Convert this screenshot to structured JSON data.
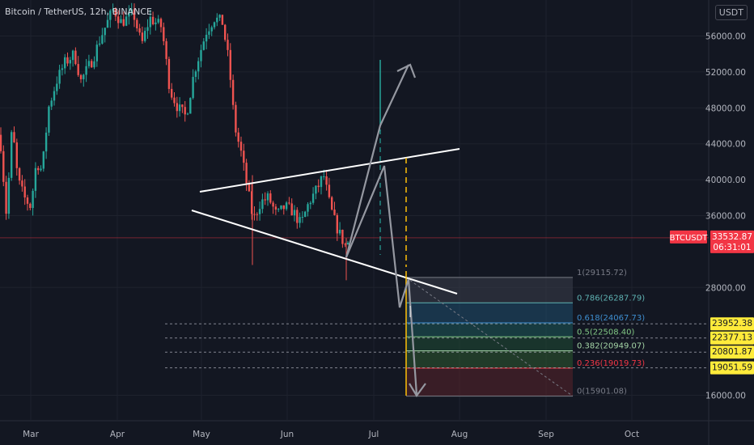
{
  "header": {
    "title": "Bitcoin / TetherUS, 12h, BINANCE",
    "currency": "USDT"
  },
  "chart_data": {
    "type": "candlestick",
    "symbol": "BTCUSDT",
    "interval": "12h",
    "exchange": "BINANCE",
    "y_axis": {
      "ticks": [
        "56000.00",
        "52000.00",
        "48000.00",
        "44000.00",
        "40000.00",
        "36000.00",
        "28000.00",
        "16000.00"
      ],
      "ylim": [
        14200,
        59700
      ]
    },
    "x_axis": {
      "ticks": [
        "Mar",
        "Apr",
        "May",
        "Jun",
        "Jul",
        "Aug",
        "Sep",
        "Oct"
      ]
    },
    "price_tag": {
      "symbol": "BTCUSDT",
      "value": "33532.87",
      "countdown": "06:31:01",
      "price": 33532.87
    },
    "fibonacci": [
      {
        "ratio": 1,
        "label": "1(29115.72)",
        "price": 29115.72,
        "color": "#787b86"
      },
      {
        "ratio": 0.786,
        "label": "0.786(26287.79)",
        "price": 26287.79,
        "color": "#5fb3b3"
      },
      {
        "ratio": 0.618,
        "label": "0.618(24067.73)",
        "price": 24067.73,
        "color": "#3e8ed0"
      },
      {
        "ratio": 0.5,
        "label": "0.5(22508.40)",
        "price": 22508.4,
        "color": "#81c784"
      },
      {
        "ratio": 0.382,
        "label": "0.382(20949.07)",
        "price": 20949.07,
        "color": "#a5d6a7"
      },
      {
        "ratio": 0.236,
        "label": "0.236(19019.73)",
        "price": 19019.73,
        "color": "#f23645"
      },
      {
        "ratio": 0,
        "label": "0(15901.08)",
        "price": 15901.08,
        "color": "#787b86"
      }
    ],
    "price_levels": [
      {
        "label": "23952.38",
        "price": 23952.38
      },
      {
        "label": "22377.13",
        "price": 22377.13
      },
      {
        "label": "20801.87",
        "price": 20801.87
      },
      {
        "label": "19051.59",
        "price": 19051.59
      }
    ],
    "colors": {
      "background": "#131722",
      "up": "#26a69a",
      "down": "#ef5350",
      "axis_text": "#b2b5be",
      "tag_red": "#f23645",
      "tag_yellow": "#ffeb3b",
      "projection": "#ffc107"
    }
  }
}
